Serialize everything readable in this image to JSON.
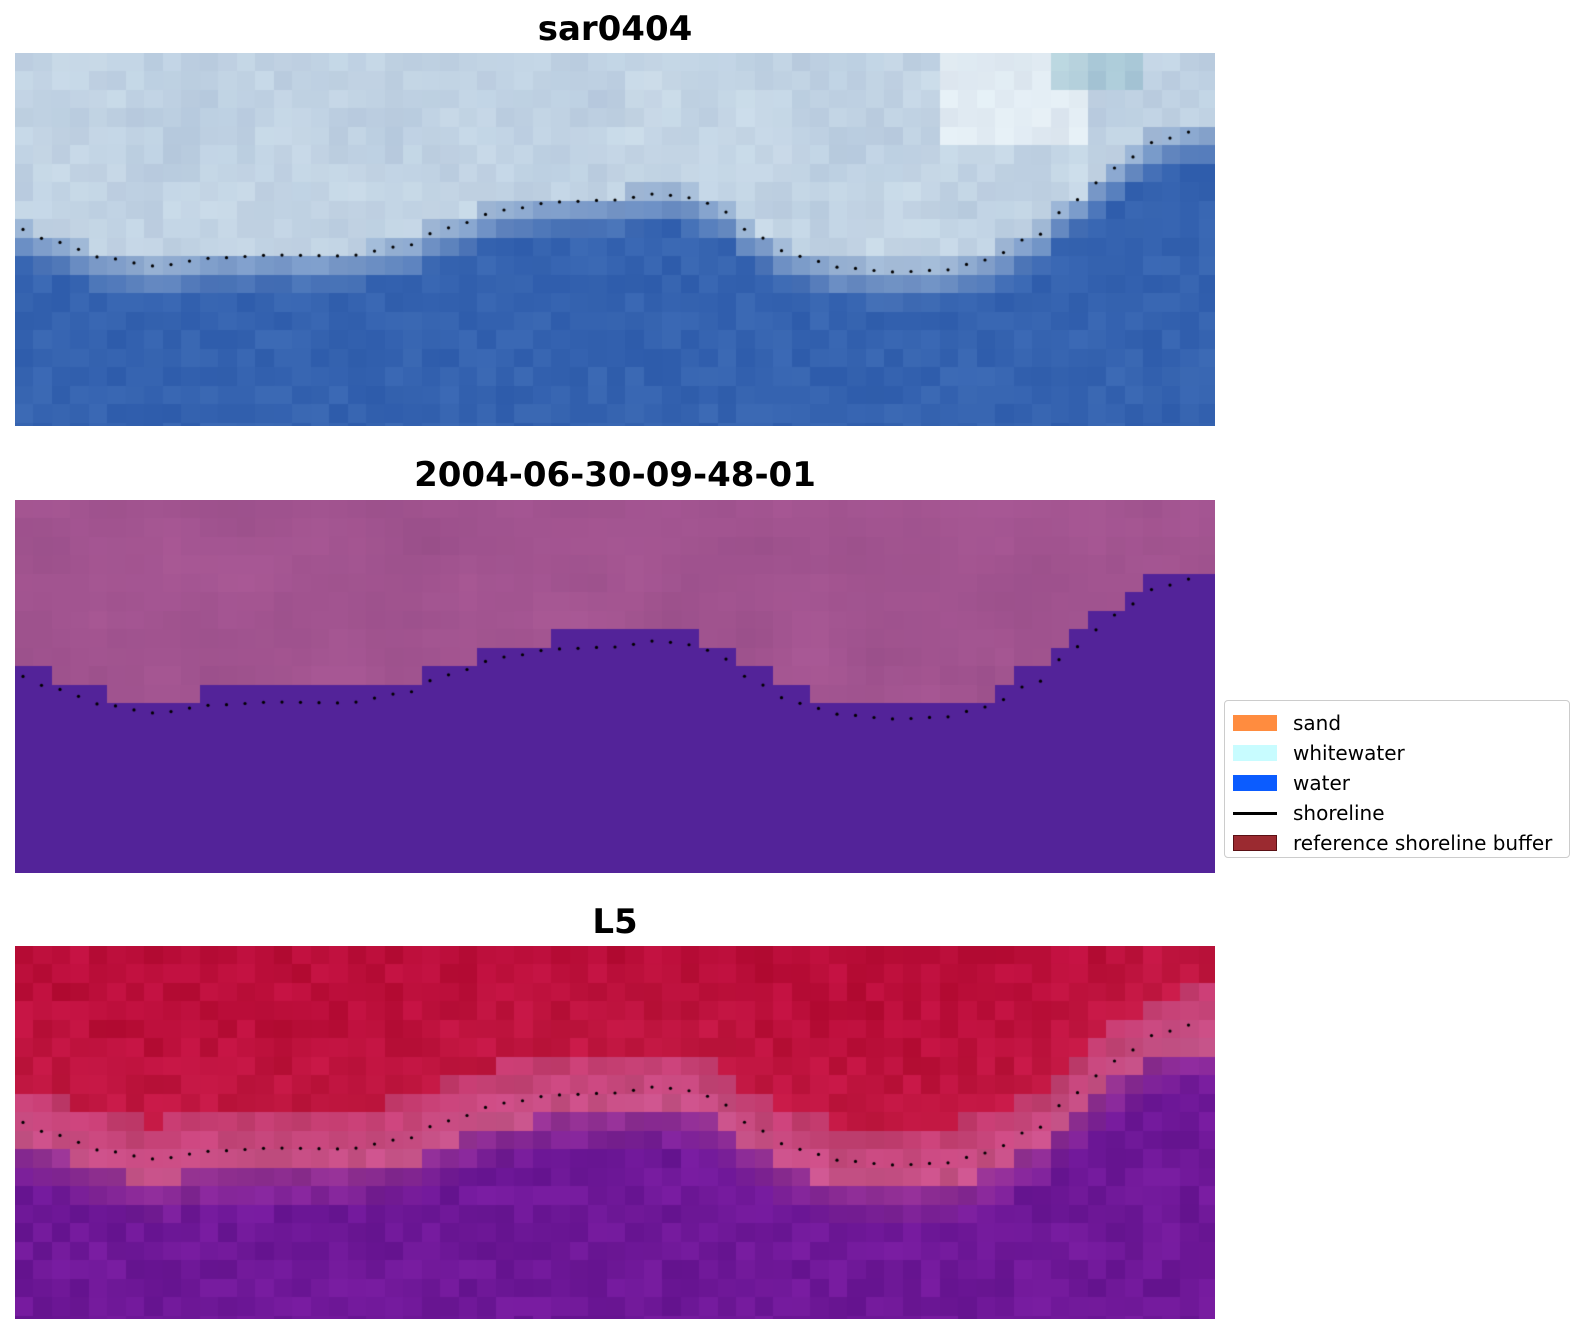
{
  "panels": [
    {
      "title": "sar0404",
      "style": "sar"
    },
    {
      "title": "2004-06-30-09-48-01",
      "style": "class"
    },
    {
      "title": "L5",
      "style": "index"
    }
  ],
  "legend": {
    "items": [
      {
        "label": "sand",
        "kind": "patch",
        "color": "#ff8c3f"
      },
      {
        "label": "whitewater",
        "kind": "patch",
        "color": "#c8fcff"
      },
      {
        "label": "water",
        "kind": "patch",
        "color": "#0b5cff"
      },
      {
        "label": "shoreline",
        "kind": "line",
        "color": "#000000"
      },
      {
        "label": "reference shoreline buffer",
        "kind": "patch",
        "color": "#9b2a30",
        "edge": "#5a1014"
      }
    ]
  },
  "colors": {
    "sar_water": "#3563b0",
    "sar_land": "#b4c8dd",
    "class_land": "#a25490",
    "class_water": "#532399",
    "index_land": "#bb0e3a",
    "index_water": "#6f1898",
    "shoreline_dots": "#000000"
  }
}
